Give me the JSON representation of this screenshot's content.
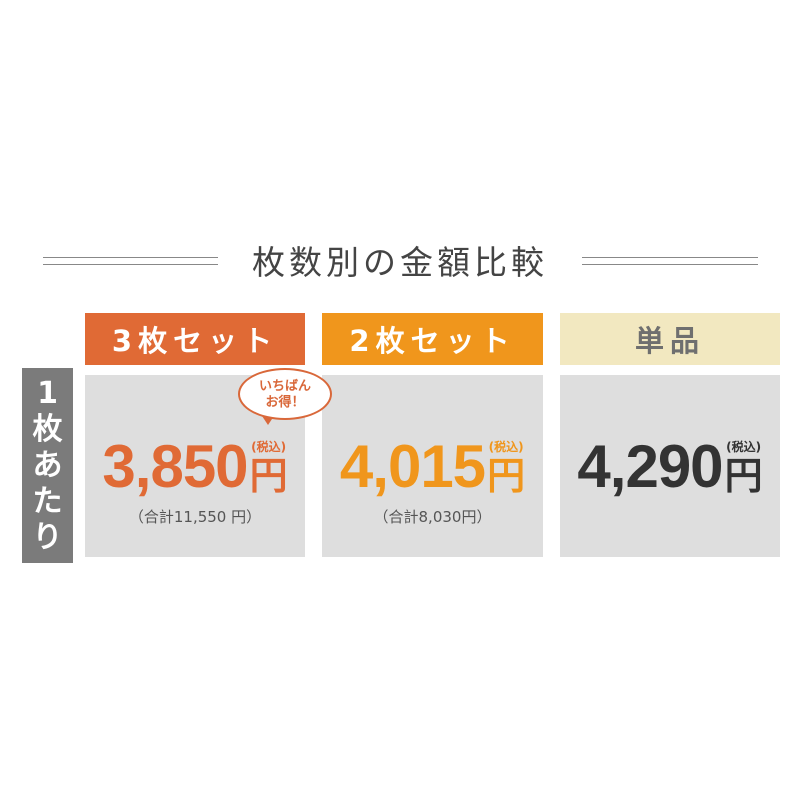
{
  "title": "枚数別の金額比較",
  "side_label": "1枚あたり",
  "colors": {
    "set3": "#e06a35",
    "set2": "#f0961c",
    "single_header": "#f2e8c0",
    "card": "#dedede",
    "side": "#7b7b7b"
  },
  "plans": [
    {
      "label": "3枚セット",
      "price": "3,850",
      "yen": "円",
      "tax": "(税込)",
      "total": "（合計11,550 円）",
      "badge": "いちばん\nお得！"
    },
    {
      "label": "2枚セット",
      "price": "4,015",
      "yen": "円",
      "tax": "(税込)",
      "total": "（合計8,030円）"
    },
    {
      "label": "単品",
      "price": "4,290",
      "yen": "円",
      "tax": "(税込)"
    }
  ]
}
